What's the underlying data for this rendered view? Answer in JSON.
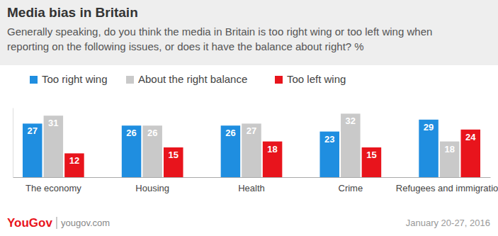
{
  "chart_data": {
    "type": "bar",
    "title": "Media bias in Britain",
    "subtitle": "Generally speaking, do you think the media in Britain is too right wing or too left wing when reporting on the following issues, or does it have the balance about right? %",
    "categories": [
      "The economy",
      "Housing",
      "Health",
      "Crime",
      "Refugees and immigration"
    ],
    "series": [
      {
        "name": "Too right wing",
        "color": "#1f8ee0",
        "values": [
          27,
          26,
          26,
          23,
          29
        ]
      },
      {
        "name": "About the right balance",
        "color": "#c9c9c9",
        "values": [
          31,
          26,
          27,
          32,
          18
        ]
      },
      {
        "name": "Too left wing",
        "color": "#e8141c",
        "values": [
          12,
          15,
          18,
          15,
          24
        ]
      }
    ],
    "ylim": [
      0,
      35
    ],
    "data_labels": true,
    "tick_labels": "x",
    "legend": "top-left",
    "logo": "YouGov",
    "source": "yougov.com",
    "date": "January 20-27, 2016"
  }
}
